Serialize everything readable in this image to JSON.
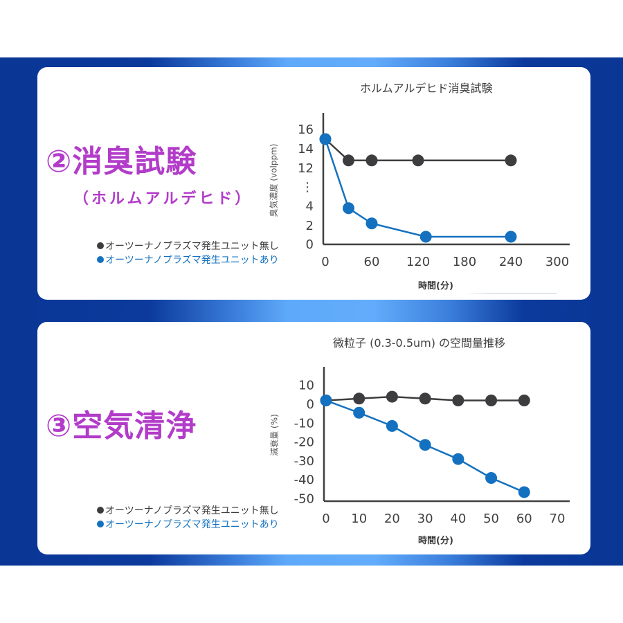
{
  "colors": {
    "band_dark": "#0a3696",
    "band_light": "#5ea9f9",
    "heading": "#b23cc9",
    "series_off": "#3d3d3f",
    "series_on": "#1471bf",
    "axis": "#404040"
  },
  "sections": [
    {
      "heading": "②消臭試験",
      "subheading": "（ホルムアルデヒド）",
      "legend": [
        {
          "marker": "●",
          "label": "オーツーナノプラズマ発生ユニット無し"
        },
        {
          "marker": "●",
          "label": "オーツーナノプラズマ発生ユニットあり"
        }
      ]
    },
    {
      "heading": "③空気清浄",
      "legend": [
        {
          "marker": "●",
          "label": "オーツーナノプラズマ発生ユニット無し"
        },
        {
          "marker": "●",
          "label": "オーツーナノプラズマ発生ユニットあり"
        }
      ]
    }
  ],
  "chart_data": [
    {
      "type": "line",
      "title": "ホルムアルデヒド消臭試験",
      "xlabel": "時間(分)",
      "ylabel": "臭気濃度 (volppm)",
      "xlim": [
        0,
        300
      ],
      "xticks": [
        0,
        60,
        120,
        180,
        240,
        300
      ],
      "yticks": [
        "0",
        "2",
        "4",
        "⋮",
        "12",
        "14",
        "16"
      ],
      "y_axis_break": "between 4 and 12",
      "grid": false,
      "legend_position": "left, outside plot",
      "series": [
        {
          "name": "オーツーナノプラズマ発生ユニット無し",
          "color": "#3d3d3f",
          "x": [
            0,
            30,
            60,
            120,
            240
          ],
          "values": [
            15,
            12.8,
            12.8,
            12.8,
            12.8
          ]
        },
        {
          "name": "オーツーナノプラズマ発生ユニットあり",
          "color": "#1471bf",
          "x": [
            0,
            30,
            60,
            130,
            240
          ],
          "values": [
            15,
            3.8,
            2.2,
            0.8,
            0.8
          ]
        }
      ]
    },
    {
      "type": "line",
      "title": "微粒子 (0.3-0.5um) の空間量推移",
      "xlabel": "時間(分)",
      "ylabel": "減衰量 (%)",
      "xlim": [
        0,
        70
      ],
      "ylim": [
        -50,
        10
      ],
      "xticks": [
        0,
        10,
        20,
        30,
        40,
        50,
        60,
        70
      ],
      "yticks": [
        10,
        0,
        -10,
        -20,
        -30,
        -40,
        -50
      ],
      "grid": false,
      "legend_position": "left, outside plot",
      "series": [
        {
          "name": "オーツーナノプラズマ発生ユニット無し",
          "color": "#3d3d3f",
          "x": [
            0,
            10,
            20,
            30,
            40,
            50,
            60
          ],
          "values": [
            2,
            3,
            4,
            3,
            2,
            2,
            2
          ]
        },
        {
          "name": "オーツーナノプラズマ発生ユニットあり",
          "color": "#1471bf",
          "x": [
            0,
            10,
            20,
            30,
            40,
            50,
            60
          ],
          "values": [
            2,
            -4.5,
            -11.5,
            -21.5,
            -29,
            -39,
            -46.5
          ]
        }
      ]
    }
  ]
}
